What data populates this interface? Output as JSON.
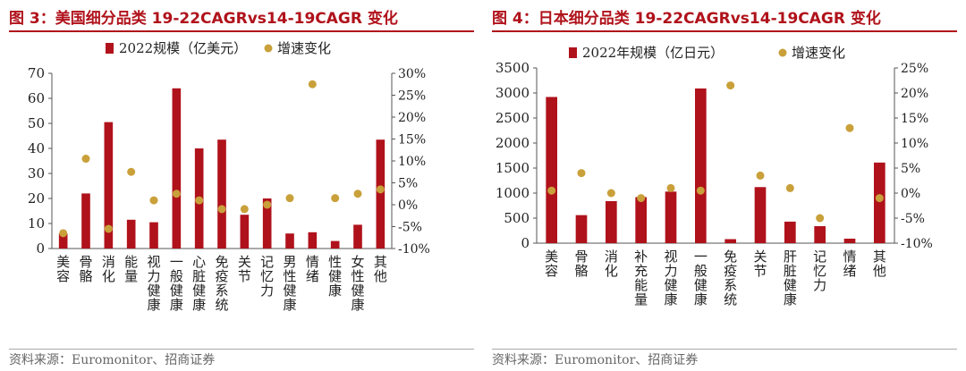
{
  "source_text": "资料来源：Euromonitor、招商证券",
  "chart_data": [
    {
      "type": "bar",
      "title": "图 3：美国细分品类 19-22CAGRvs14-19CAGR 变化",
      "categories": [
        "美容",
        "骨骼",
        "消化",
        "能量",
        "视力健康",
        "一般健康",
        "心脏健康",
        "免疫系统",
        "关节",
        "记忆力",
        "男性健康",
        "情绪",
        "性健康",
        "女性健康",
        "其他"
      ],
      "series": [
        {
          "name": "2022规模（亿美元）",
          "axis": "left",
          "kind": "bar",
          "values": [
            6,
            22,
            50.5,
            11.5,
            10.5,
            64,
            40,
            43.5,
            13.5,
            20,
            6,
            6.5,
            3,
            9.5,
            43.5
          ]
        },
        {
          "name": "增速变化",
          "axis": "right",
          "kind": "dot",
          "values": [
            -6.5,
            10.5,
            -5.5,
            7.5,
            1,
            2.5,
            1,
            -1,
            -1,
            0,
            1.5,
            27.5,
            1.5,
            2.5,
            3.5
          ]
        }
      ],
      "y_left": {
        "min": 0,
        "max": 70,
        "step": 10,
        "ticks": [
          "0",
          "10",
          "20",
          "30",
          "40",
          "50",
          "60",
          "70"
        ]
      },
      "y_right": {
        "min": -10,
        "max": 30,
        "step": 5,
        "ticks": [
          "-10%",
          "-5%",
          "0%",
          "5%",
          "10%",
          "15%",
          "20%",
          "25%",
          "30%"
        ]
      },
      "legend_placement": "top-center",
      "grid": false,
      "colors": {
        "bar": "#b0121b",
        "dot": "#c9a03a"
      }
    },
    {
      "type": "bar",
      "title": "图 4：日本细分品类 19-22CAGRvs14-19CAGR 变化",
      "categories": [
        "美容",
        "骨骼",
        "消化",
        "补充能量",
        "视力健康",
        "一般健康",
        "免疫系统",
        "关节",
        "肝脏健康",
        "记忆力",
        "情绪",
        "其他"
      ],
      "series": [
        {
          "name": "2022年规模（亿日元）",
          "axis": "left",
          "kind": "bar",
          "values": [
            2920,
            560,
            840,
            920,
            1030,
            3090,
            80,
            1120,
            430,
            340,
            90,
            1610
          ]
        },
        {
          "name": "增速变化",
          "axis": "right",
          "kind": "dot",
          "values": [
            0.5,
            4,
            0,
            -1,
            1,
            0.5,
            21.5,
            3.5,
            1,
            -5,
            13,
            -1
          ]
        }
      ],
      "y_left": {
        "min": 0,
        "max": 3500,
        "step": 500,
        "ticks": [
          "0",
          "500",
          "1000",
          "1500",
          "2000",
          "2500",
          "3000",
          "3500"
        ]
      },
      "y_right": {
        "min": -10,
        "max": 25,
        "step": 5,
        "ticks": [
          "-10%",
          "-5%",
          "0%",
          "5%",
          "10%",
          "15%",
          "20%",
          "25%"
        ]
      },
      "legend_placement": "top-center",
      "grid": false,
      "colors": {
        "bar": "#b0121b",
        "dot": "#c9a03a"
      }
    }
  ]
}
